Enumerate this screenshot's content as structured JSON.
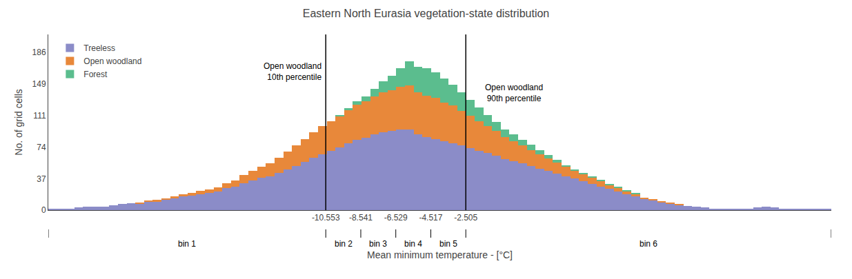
{
  "chart_data": {
    "type": "bar",
    "stacked": true,
    "title": "Eastern North Eurasia vegetation-state distribution",
    "xlabel": "Mean minimum temperature - [°C]",
    "ylabel": "No. of grid cells",
    "bins": [
      -26.5,
      -26,
      -25.5,
      -25,
      -24.5,
      -24,
      -23.5,
      -23,
      -22.5,
      -22,
      -21.5,
      -21,
      -20.5,
      -20,
      -19.5,
      -19,
      -18.5,
      -18,
      -17.5,
      -17,
      -16.5,
      -16,
      -15.5,
      -15,
      -14.5,
      -14,
      -13.5,
      -13,
      -12.5,
      -12,
      -11.5,
      -11,
      -10.5,
      -10,
      -9.5,
      -9,
      -8.5,
      -8,
      -7.5,
      -7,
      -6.5,
      -6,
      -5.5,
      -5,
      -4.5,
      -4,
      -3.5,
      -3,
      -2.5,
      -2,
      -1.5,
      -1,
      -0.5,
      0,
      0.5,
      1,
      1.5,
      2,
      2.5,
      3,
      3.5,
      4,
      4.5,
      5,
      5.5,
      6,
      6.5,
      7,
      7.5,
      8,
      8.5,
      9,
      9.5,
      10,
      10.5,
      11,
      11.5,
      12,
      12.5,
      13,
      13.5,
      14,
      14.5,
      15,
      15.5,
      16,
      16.5,
      17,
      17.5,
      18,
      18.5
    ],
    "series": [
      {
        "name": "Treeless",
        "color": "#8B8CC8",
        "values": [
          2,
          2,
          2,
          3,
          4,
          4,
          4,
          6,
          7,
          8,
          8,
          10,
          10,
          12,
          14,
          16,
          17,
          19,
          20,
          22,
          26,
          28,
          32,
          35,
          38,
          40,
          44,
          48,
          52,
          57,
          62,
          66,
          70,
          74,
          79,
          83,
          85,
          89,
          92,
          93,
          95,
          95,
          89,
          86,
          84,
          81,
          79,
          76,
          73,
          70,
          67,
          64,
          60,
          58,
          55,
          52,
          49,
          46,
          43,
          40,
          37,
          34,
          31,
          28,
          25,
          22,
          19,
          16,
          13,
          11,
          9,
          8,
          6,
          5,
          4,
          3,
          2,
          2,
          2,
          2,
          2,
          3,
          4,
          3,
          2,
          1,
          1,
          1,
          1,
          1
        ]
      },
      {
        "name": "Open woodland",
        "color": "#E8883A",
        "values": [
          0,
          0,
          0,
          0,
          0,
          0,
          0,
          0,
          0,
          0,
          1,
          1,
          2,
          2,
          2,
          3,
          3,
          4,
          4,
          5,
          6,
          7,
          9,
          11,
          13,
          15,
          18,
          21,
          24,
          27,
          30,
          33,
          35,
          37,
          39,
          41,
          43,
          45,
          47,
          48,
          50,
          52,
          50,
          49,
          48,
          46,
          44,
          41,
          38,
          35,
          32,
          29,
          26,
          23,
          21,
          19,
          17,
          15,
          13,
          11,
          9,
          8,
          7,
          6,
          5,
          4,
          3,
          3,
          2,
          2,
          1,
          1,
          1,
          0,
          0,
          0,
          0,
          0,
          0,
          0,
          0,
          0,
          0,
          0,
          0,
          0,
          0,
          0,
          0,
          0
        ]
      },
      {
        "name": "Forest",
        "color": "#5BBD8E",
        "values": [
          0,
          0,
          0,
          0,
          0,
          0,
          0,
          0,
          0,
          0,
          0,
          0,
          0,
          0,
          0,
          0,
          0,
          0,
          0,
          0,
          0,
          0,
          0,
          0,
          0,
          0,
          0,
          0,
          0,
          0,
          0,
          0,
          0,
          1,
          2,
          4,
          6,
          9,
          13,
          17,
          22,
          28,
          30,
          32,
          30,
          28,
          25,
          22,
          19,
          16,
          13,
          11,
          9,
          8,
          7,
          6,
          5,
          4,
          3,
          2,
          2,
          2,
          2,
          2,
          1,
          1,
          1,
          1,
          0,
          0,
          0,
          0,
          0,
          0,
          0,
          0,
          0,
          0,
          0,
          0,
          0,
          0,
          0,
          0,
          0,
          0,
          0,
          0,
          0,
          0
        ]
      }
    ],
    "xlim": [
      -26.5,
      18.5
    ],
    "xticks": [
      -10.553,
      -8.541,
      -6.529,
      -4.517,
      -2.505
    ],
    "ylim": [
      0,
      207
    ],
    "yticks": [
      0,
      37,
      74,
      111,
      149,
      186
    ],
    "bin_labels": [
      "bin 1",
      "bin 2",
      "bin 3",
      "bin 4",
      "bin 5",
      "bin 6"
    ],
    "annotations": [
      {
        "text": "Open woodland\n10th percentile",
        "x": -10.553
      },
      {
        "text": "Open woodland\n90th percentile",
        "x": -2.505
      }
    ],
    "legend": "upper left",
    "grid": false
  }
}
